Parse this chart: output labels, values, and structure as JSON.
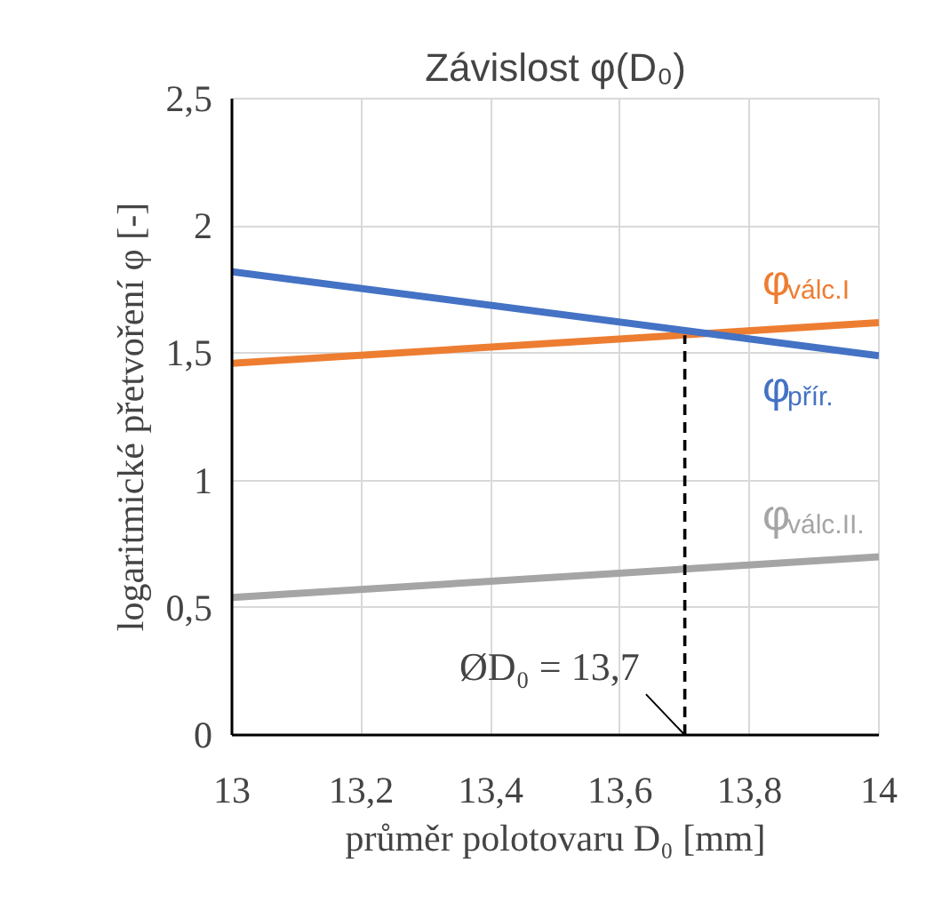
{
  "chart_data": {
    "type": "line",
    "title": "Závislost φ(D₀)",
    "xlabel": "průměr polotovaru D₀ [mm]",
    "ylabel": "logaritmické přetvoření φ [-]",
    "x": [
      13,
      14
    ],
    "series": [
      {
        "name": "φ$_{válc.I}$",
        "color": "#ed7d31",
        "values": [
          1.46,
          1.62
        ]
      },
      {
        "name": "φ$_{přír.}$",
        "color": "#4472c4",
        "values": [
          1.82,
          1.49
        ]
      },
      {
        "name": "φ$_{válc.II.}$",
        "color": "#a5a5a5",
        "values": [
          0.54,
          0.7
        ]
      },
      {
        "type": "line",
        "color": "#000000",
        "line_style": "dashed",
        "x": [
          13.7,
          13.7
        ],
        "values": [
          0,
          1.57
        ]
      }
    ],
    "annotations": [
      {
        "text": "ØD₀ = 13,7",
        "x": 13.7,
        "y": 0
      }
    ],
    "xlim": [
      13,
      14
    ],
    "ylim": [
      0,
      2.5
    ],
    "xticks": [
      13,
      {
        "value": 13.2,
        "label": "13,2"
      },
      {
        "value": 13.4,
        "label": "13,4"
      },
      {
        "value": 13.6,
        "label": "13,6"
      },
      {
        "value": 13.8,
        "label": "13,8"
      },
      14
    ],
    "yticks": [
      0,
      {
        "value": 0.5,
        "label": "0,5"
      },
      1,
      {
        "value": 1.5,
        "label": "1,5"
      },
      2,
      {
        "value": 2.5,
        "label": "2,5"
      }
    ],
    "grid": true
  }
}
